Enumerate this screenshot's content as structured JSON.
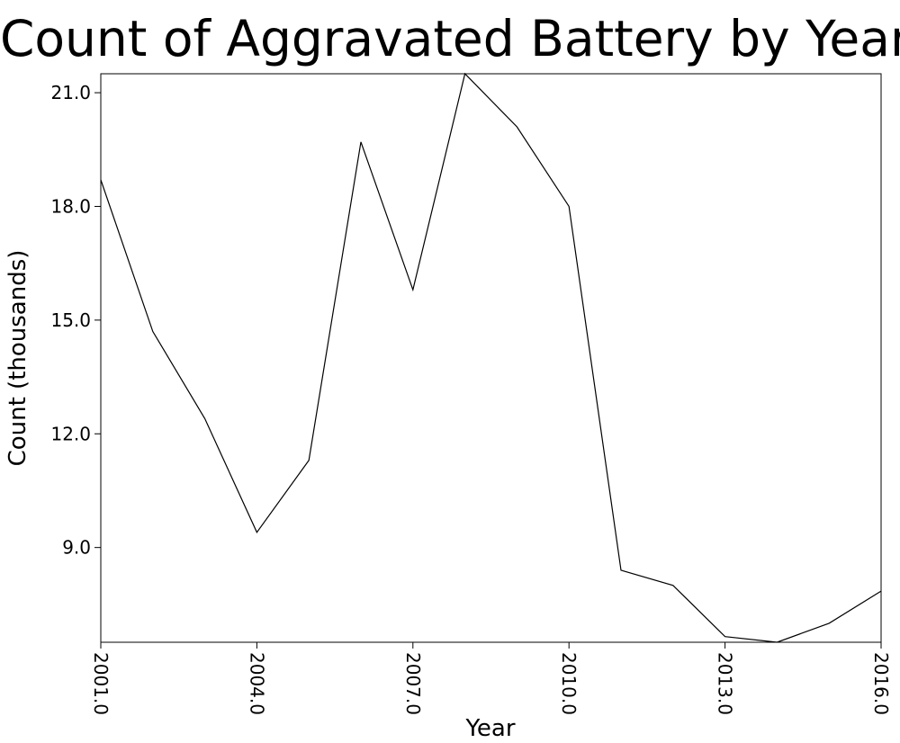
{
  "chart_data": {
    "type": "line",
    "title": "Count of Aggravated Battery by Year",
    "xlabel": "Year",
    "ylabel": "Count (thousands)",
    "x": [
      2001,
      2002,
      2003,
      2004,
      2005,
      2006,
      2007,
      2008,
      2009,
      2010,
      2011,
      2012,
      2013,
      2014,
      2015,
      2016
    ],
    "series": [
      {
        "values": [
          18.7,
          14.7,
          12.4,
          9.4,
          11.3,
          19.7,
          15.8,
          21.5,
          20.1,
          18.0,
          8.4,
          8.0,
          6.65,
          6.5,
          7.0,
          7.85
        ]
      }
    ],
    "xlim": [
      2001,
      2016
    ],
    "ylim": [
      6.5,
      21.5
    ],
    "xticks": [
      "2001.0",
      "2004.0",
      "2007.0",
      "2010.0",
      "2013.0",
      "2016.0"
    ],
    "yticks": [
      "9.0",
      "12.0",
      "15.0",
      "18.0",
      "21.0"
    ],
    "grid": false,
    "line_color": "#000000"
  }
}
